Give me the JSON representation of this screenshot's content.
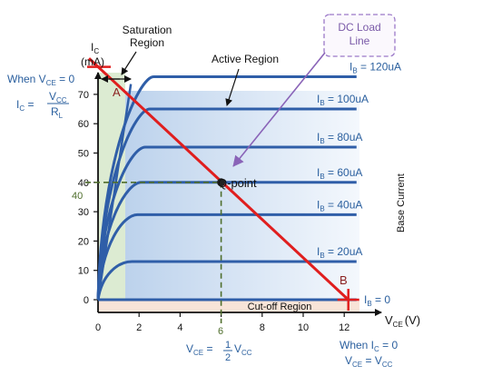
{
  "axes": {
    "y_label_main": "I",
    "y_label_sub": "C",
    "y_unit": "(mA)",
    "x_label_main": "V",
    "x_label_sub": "CE",
    "x_unit": "(V)",
    "x_ticks": [
      "0",
      "2",
      "4",
      "6",
      "8",
      "10",
      "12"
    ],
    "y_ticks": [
      "0",
      "10",
      "20",
      "30",
      "40",
      "50",
      "60",
      "70"
    ]
  },
  "regions": {
    "saturation": [
      "Saturation",
      "Region"
    ],
    "active": "Active Region",
    "cutoff": "Cut-off Region"
  },
  "load_line_callout": [
    "DC Load",
    "Line"
  ],
  "q_point": {
    "label": "Q-point",
    "x": 6,
    "y": 40,
    "x_tick": "6",
    "y_tick": "40"
  },
  "points": {
    "a": "A",
    "b": "B"
  },
  "curves": [
    {
      "main": "I",
      "sub": "B",
      "value": " = 120uA",
      "current_ma": 76
    },
    {
      "main": "I",
      "sub": "B",
      "value": " = 100uA",
      "current_ma": 65
    },
    {
      "main": "I",
      "sub": "B",
      "value": " = 80uA",
      "current_ma": 52
    },
    {
      "main": "I",
      "sub": "B",
      "value": " = 60uA",
      "current_ma": 40
    },
    {
      "main": "I",
      "sub": "B",
      "value": " = 40uA",
      "current_ma": 29
    },
    {
      "main": "I",
      "sub": "B",
      "value": " = 20uA",
      "current_ma": 13
    },
    {
      "main": "I",
      "sub": "B",
      "value": " = 0",
      "current_ma": 0
    }
  ],
  "base_current_label": "Base Current",
  "annotations": {
    "when_vce0_a": "When V",
    "when_vce0_sub": "CE",
    "when_vce0_b": " = 0",
    "ic_main": "I",
    "ic_sub": "C",
    "ic_eq": " = ",
    "vcc_main": "V",
    "vcc_sub": "CC",
    "rl_main": "R",
    "rl_sub": "L",
    "vce_main": "V",
    "vce_sub": "CE",
    "vce_eq": " = ",
    "half_num": "1",
    "half_den": "2",
    "vcc2_main": "V",
    "vcc2_sub": "CC",
    "when_ic0_a": "When I",
    "when_ic0_sub": "C",
    "when_ic0_b": " = 0",
    "vce3_main": "V",
    "vce3_sub": "CE",
    "vce3_eq": " = ",
    "vcc3_main": "V",
    "vcc3_sub": "CC"
  },
  "colors": {
    "curve": "#2f5ea8",
    "load_line": "#e01e1e",
    "saturation_fill": "#dcebd2",
    "cutoff_fill": "#f8e4d8",
    "q_dashed": "#4f6e2c",
    "callout_border": "#9b78c8",
    "arrow_purple": "#8a64b8"
  }
}
